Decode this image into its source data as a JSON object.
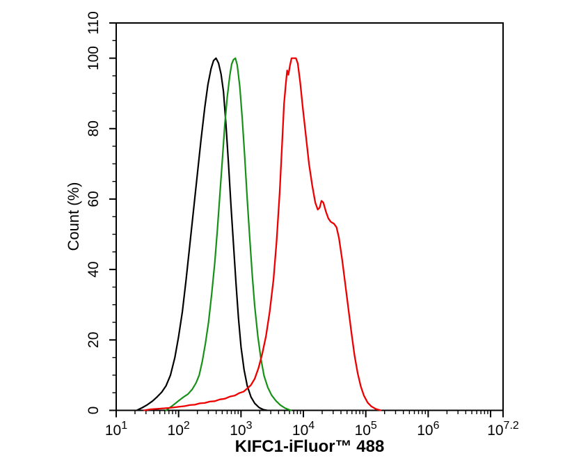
{
  "figure": {
    "background_color": "#ffffff",
    "frame_color": "#000000"
  },
  "chart_data": {
    "type": "line",
    "subtype": "flow-cytometry-overlay-histogram",
    "title": "",
    "xlabel": "KIFC1-iFluor™ 488",
    "ylabel": "Count  (%)",
    "x_axis": {
      "scale": "log10",
      "range_log": [
        1,
        7.2
      ],
      "major_tick_logs": [
        1,
        2,
        3,
        4,
        5,
        6,
        7,
        7.2
      ],
      "minor_ticks": "k×10^d for k=2..9 within each decade",
      "tick_labels": [
        {
          "base": "10",
          "exp": "1",
          "log": 1
        },
        {
          "base": "10",
          "exp": "2",
          "log": 2
        },
        {
          "base": "10",
          "exp": "3",
          "log": 3
        },
        {
          "base": "10",
          "exp": "4",
          "log": 4
        },
        {
          "base": "10",
          "exp": "5",
          "log": 5
        },
        {
          "base": "10",
          "exp": "6",
          "log": 6
        },
        {
          "base": "10",
          "exp": "7.2",
          "log": 7.2
        }
      ]
    },
    "y_axis": {
      "range": [
        0,
        110
      ],
      "tick_values": [
        0,
        20,
        40,
        60,
        80,
        100,
        110
      ],
      "minor_step": 5
    },
    "grid": false,
    "legend": false,
    "series": [
      {
        "id": "black",
        "color": "#000000",
        "width": 2.2,
        "peak_log_x": 2.6,
        "peak_pct": 100,
        "points": [
          [
            1.33,
            0
          ],
          [
            1.42,
            0.8
          ],
          [
            1.5,
            1.6
          ],
          [
            1.58,
            2.6
          ],
          [
            1.66,
            3.9
          ],
          [
            1.73,
            5.2
          ],
          [
            1.8,
            7
          ],
          [
            1.87,
            10
          ],
          [
            1.94,
            15
          ],
          [
            2.0,
            21
          ],
          [
            2.06,
            28
          ],
          [
            2.12,
            37
          ],
          [
            2.18,
            47
          ],
          [
            2.24,
            57
          ],
          [
            2.3,
            67
          ],
          [
            2.36,
            77
          ],
          [
            2.42,
            86
          ],
          [
            2.47,
            92.5
          ],
          [
            2.52,
            97
          ],
          [
            2.56,
            99.3
          ],
          [
            2.6,
            100
          ],
          [
            2.64,
            98.6
          ],
          [
            2.68,
            95.5
          ],
          [
            2.72,
            90.5
          ],
          [
            2.76,
            81
          ],
          [
            2.8,
            70
          ],
          [
            2.84,
            58
          ],
          [
            2.88,
            47
          ],
          [
            2.92,
            36
          ],
          [
            2.96,
            26
          ],
          [
            3.0,
            18
          ],
          [
            3.05,
            11.5
          ],
          [
            3.1,
            7
          ],
          [
            3.16,
            3.8
          ],
          [
            3.22,
            2
          ],
          [
            3.29,
            0.8
          ],
          [
            3.36,
            0.2
          ],
          [
            3.42,
            0
          ]
        ]
      },
      {
        "id": "green",
        "color": "#169116",
        "width": 2.2,
        "peak_log_x": 2.91,
        "peak_pct": 100,
        "points": [
          [
            1.8,
            0
          ],
          [
            1.9,
            1.3
          ],
          [
            2.0,
            2.7
          ],
          [
            2.08,
            3.8
          ],
          [
            2.15,
            4.6
          ],
          [
            2.22,
            6
          ],
          [
            2.28,
            7.8
          ],
          [
            2.33,
            10
          ],
          [
            2.38,
            14
          ],
          [
            2.43,
            19
          ],
          [
            2.48,
            25
          ],
          [
            2.53,
            33
          ],
          [
            2.58,
            42
          ],
          [
            2.62,
            51
          ],
          [
            2.66,
            61
          ],
          [
            2.7,
            71
          ],
          [
            2.74,
            81
          ],
          [
            2.78,
            89
          ],
          [
            2.82,
            95
          ],
          [
            2.85,
            98.3
          ],
          [
            2.88,
            99.6
          ],
          [
            2.91,
            100
          ],
          [
            2.94,
            98
          ],
          [
            2.98,
            92
          ],
          [
            3.02,
            83
          ],
          [
            3.06,
            72
          ],
          [
            3.1,
            60
          ],
          [
            3.14,
            49
          ],
          [
            3.18,
            38.5
          ],
          [
            3.22,
            29.5
          ],
          [
            3.27,
            21
          ],
          [
            3.32,
            14.5
          ],
          [
            3.37,
            9.8
          ],
          [
            3.43,
            6.5
          ],
          [
            3.49,
            4.3
          ],
          [
            3.56,
            2.7
          ],
          [
            3.63,
            1.5
          ],
          [
            3.71,
            0.6
          ],
          [
            3.8,
            0
          ]
        ]
      },
      {
        "id": "red",
        "color": "#ee0000",
        "width": 2.3,
        "peak_log_x": 3.85,
        "peak_pct": 100,
        "points": [
          [
            1.45,
            0
          ],
          [
            1.55,
            0.3
          ],
          [
            1.7,
            0.5
          ],
          [
            1.85,
            0.7
          ],
          [
            2.0,
            1.0
          ],
          [
            2.1,
            1.2
          ],
          [
            2.18,
            1.5
          ],
          [
            2.26,
            1.6
          ],
          [
            2.34,
            2.0
          ],
          [
            2.42,
            2.1
          ],
          [
            2.5,
            2.5
          ],
          [
            2.58,
            2.6
          ],
          [
            2.66,
            3.1
          ],
          [
            2.74,
            3.3
          ],
          [
            2.82,
            3.9
          ],
          [
            2.9,
            4.2
          ],
          [
            2.97,
            4.9
          ],
          [
            3.04,
            5.3
          ],
          [
            3.1,
            6.2
          ],
          [
            3.16,
            7.2
          ],
          [
            3.22,
            9
          ],
          [
            3.28,
            12
          ],
          [
            3.34,
            16
          ],
          [
            3.4,
            21
          ],
          [
            3.46,
            28
          ],
          [
            3.52,
            37
          ],
          [
            3.57,
            48
          ],
          [
            3.62,
            62
          ],
          [
            3.66,
            76
          ],
          [
            3.69,
            87
          ],
          [
            3.72,
            93
          ],
          [
            3.74,
            96.5
          ],
          [
            3.76,
            95.3
          ],
          [
            3.785,
            98
          ],
          [
            3.81,
            100
          ],
          [
            3.85,
            100
          ],
          [
            3.88,
            100
          ],
          [
            3.91,
            98.5
          ],
          [
            3.95,
            93
          ],
          [
            3.99,
            86
          ],
          [
            4.04,
            78
          ],
          [
            4.09,
            70
          ],
          [
            4.14,
            64
          ],
          [
            4.19,
            59
          ],
          [
            4.23,
            57
          ],
          [
            4.26,
            57.5
          ],
          [
            4.29,
            59.5
          ],
          [
            4.32,
            59
          ],
          [
            4.36,
            56.5
          ],
          [
            4.4,
            54.5
          ],
          [
            4.44,
            53.5
          ],
          [
            4.49,
            53
          ],
          [
            4.53,
            52
          ],
          [
            4.57,
            49
          ],
          [
            4.62,
            43
          ],
          [
            4.67,
            36
          ],
          [
            4.72,
            29
          ],
          [
            4.77,
            22
          ],
          [
            4.82,
            15.5
          ],
          [
            4.87,
            10.5
          ],
          [
            4.92,
            6.8
          ],
          [
            4.97,
            4.2
          ],
          [
            5.03,
            2.2
          ],
          [
            5.09,
            1.1
          ],
          [
            5.16,
            0.4
          ],
          [
            5.24,
            0
          ]
        ]
      }
    ]
  }
}
